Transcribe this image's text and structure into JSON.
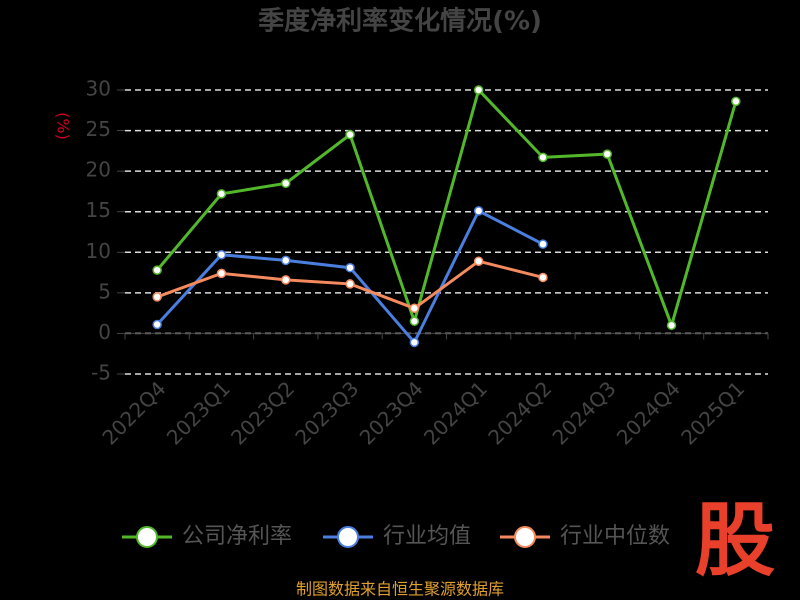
{
  "chart_data": {
    "type": "line",
    "title": "季度净利率变化情况(%)",
    "y_label": "(%)",
    "categories": [
      "2022Q4",
      "2023Q1",
      "2023Q2",
      "2023Q3",
      "2023Q4",
      "2024Q1",
      "2024Q2",
      "2024Q3",
      "2024Q4",
      "2025Q1"
    ],
    "series": [
      {
        "name": "公司净利率",
        "color": "#52b82a",
        "values": [
          7.8,
          17.2,
          18.5,
          24.5,
          1.5,
          30.0,
          21.7,
          22.1,
          1.0,
          28.6
        ]
      },
      {
        "name": "行业均值",
        "color": "#4a7fe0",
        "values": [
          1.1,
          9.7,
          9.0,
          8.1,
          -1.1,
          15.1,
          11.0,
          null,
          null,
          null
        ]
      },
      {
        "name": "行业中位数",
        "color": "#f58a5e",
        "values": [
          4.5,
          7.4,
          6.6,
          6.1,
          3.1,
          8.9,
          6.9,
          null,
          null,
          null
        ]
      }
    ],
    "ylim": [
      -5,
      30
    ],
    "yticks": [
      -5,
      0,
      5,
      10,
      15,
      20,
      25,
      30
    ],
    "grid": true,
    "source": "制图数据来自恒生聚源数据库",
    "logo": "股"
  }
}
